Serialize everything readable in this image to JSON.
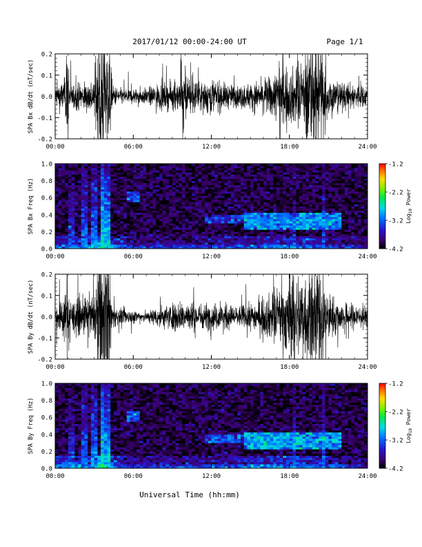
{
  "header": {
    "title": "2017/01/12  00:00-24:00 UT",
    "page": "Page 1/1"
  },
  "footer": {
    "xlabel": "Universal Time (hh:mm)"
  },
  "chart_data": [
    {
      "id": "bx-waveform",
      "type": "line",
      "ylabel": "SPA Bx dB/dt (nT/sec)",
      "ylim": [
        -0.2,
        0.2
      ],
      "yticks": [
        "0.2",
        "0.1",
        "0.0",
        "-0.1",
        "-0.2"
      ],
      "xticks": [
        "00:00",
        "06:00",
        "12:00",
        "18:00",
        "24:00"
      ],
      "xlim_hours": [
        0,
        24
      ],
      "series": [
        {
          "baseline_amplitude": [
            [
              0,
              0.04
            ],
            [
              0.8,
              0.07
            ],
            [
              1.2,
              0.05
            ],
            [
              2,
              0.05
            ],
            [
              3,
              0.07
            ],
            [
              3.4,
              0.25
            ],
            [
              4.1,
              0.25
            ],
            [
              4.4,
              0.04
            ],
            [
              5,
              0.03
            ],
            [
              7,
              0.03
            ],
            [
              8,
              0.05
            ],
            [
              9,
              0.05
            ],
            [
              9.6,
              0.06
            ],
            [
              10,
              0.09
            ],
            [
              11,
              0.05
            ],
            [
              12,
              0.07
            ],
            [
              13,
              0.05
            ],
            [
              14,
              0.04
            ],
            [
              15,
              0.05
            ],
            [
              16,
              0.06
            ],
            [
              17,
              0.09
            ],
            [
              18,
              0.1
            ],
            [
              19,
              0.12
            ],
            [
              20,
              0.13
            ],
            [
              21,
              0.08
            ],
            [
              22,
              0.05
            ],
            [
              23,
              0.05
            ],
            [
              24,
              0.04
            ]
          ],
          "bursts": [
            [
              0.8,
              1.1,
              0.22
            ],
            [
              3.4,
              4.1,
              0.25
            ],
            [
              9.6,
              10.0,
              0.22
            ],
            [
              17.2,
              17.6,
              0.2
            ],
            [
              19.2,
              20.8,
              0.22
            ]
          ]
        }
      ]
    },
    {
      "id": "bx-spectrogram",
      "type": "heatmap",
      "ylabel": "SPA Bx Freq (Hz)",
      "ylim": [
        0.0,
        1.0
      ],
      "yticks": [
        "1.0",
        "0.8",
        "0.6",
        "0.4",
        "0.2",
        "0.0"
      ],
      "xticks": [
        "00:00",
        "06:00",
        "12:00",
        "18:00",
        "24:00"
      ],
      "colorbar": {
        "label": "Log10 Power",
        "label_base": "Log",
        "label_sub": "10",
        "label_rest": " Power",
        "ticks": [
          "-1.2",
          "-2.2",
          "-3.2",
          "-4.2"
        ],
        "range": [
          -4.2,
          -1.2
        ]
      },
      "features": {
        "background": -4.0,
        "low_band": [
          [
            0,
            -3.1
          ],
          [
            3,
            -3.0
          ],
          [
            3.5,
            -2.4
          ],
          [
            4,
            -2.8
          ],
          [
            6,
            -3.4
          ],
          [
            12,
            -3.3
          ],
          [
            18,
            -3.0
          ],
          [
            21,
            -3.2
          ],
          [
            24,
            -3.6
          ]
        ],
        "vertical_lines": [
          [
            1.2,
            -3.3
          ],
          [
            2.2,
            -3.1
          ],
          [
            3.0,
            -3.0
          ],
          [
            3.6,
            -2.6
          ],
          [
            4.0,
            -2.8
          ],
          [
            18.4,
            -3.4
          ],
          [
            20.6,
            -3.2
          ]
        ],
        "band_0_3": [
          [
            14.5,
            22,
            -3.1
          ]
        ],
        "band_0_35": [
          [
            11.5,
            18,
            -3.4
          ]
        ],
        "patch_0_6": [
          [
            5.5,
            6.5,
            -3.3
          ]
        ]
      }
    },
    {
      "id": "by-waveform",
      "type": "line",
      "ylabel": "SPA By dB/dt (nT/sec)",
      "ylim": [
        -0.2,
        0.2
      ],
      "yticks": [
        "0.2",
        "0.1",
        "0.0",
        "-0.1",
        "-0.2"
      ],
      "xticks": [
        "00:00",
        "06:00",
        "12:00",
        "18:00",
        "24:00"
      ],
      "xlim_hours": [
        0,
        24
      ],
      "series": [
        {
          "baseline_amplitude": [
            [
              0,
              0.04
            ],
            [
              0.8,
              0.09
            ],
            [
              1.2,
              0.06
            ],
            [
              2,
              0.07
            ],
            [
              3,
              0.08
            ],
            [
              3.4,
              0.25
            ],
            [
              4.1,
              0.25
            ],
            [
              4.4,
              0.04
            ],
            [
              5,
              0.03
            ],
            [
              7,
              0.02
            ],
            [
              8,
              0.04
            ],
            [
              9,
              0.05
            ],
            [
              10,
              0.06
            ],
            [
              11,
              0.05
            ],
            [
              12,
              0.05
            ],
            [
              13,
              0.05
            ],
            [
              14,
              0.04
            ],
            [
              15,
              0.05
            ],
            [
              16,
              0.07
            ],
            [
              17,
              0.1
            ],
            [
              18,
              0.15
            ],
            [
              19,
              0.18
            ],
            [
              20,
              0.18
            ],
            [
              21,
              0.09
            ],
            [
              22,
              0.05
            ],
            [
              23,
              0.05
            ],
            [
              24,
              0.04
            ]
          ],
          "bursts": [
            [
              0.9,
              1.2,
              0.22
            ],
            [
              3.4,
              4.1,
              0.25
            ],
            [
              17.8,
              18.4,
              0.18
            ],
            [
              19.4,
              20.6,
              0.25
            ]
          ]
        }
      ]
    },
    {
      "id": "by-spectrogram",
      "type": "heatmap",
      "ylabel": "SPA By Freq (Hz)",
      "ylim": [
        0.0,
        1.0
      ],
      "yticks": [
        "1.0",
        "0.8",
        "0.6",
        "0.4",
        "0.2",
        "0.0"
      ],
      "xticks": [
        "00:00",
        "06:00",
        "12:00",
        "18:00",
        "24:00"
      ],
      "colorbar": {
        "label": "Log10 Power",
        "label_base": "Log",
        "label_sub": "10",
        "label_rest": " Power",
        "ticks": [
          "-1.2",
          "-2.2",
          "-3.2",
          "-4.2"
        ],
        "range": [
          -4.2,
          -1.2
        ]
      },
      "features": {
        "background": -4.0,
        "low_band": [
          [
            0,
            -3.0
          ],
          [
            3,
            -2.9
          ],
          [
            3.5,
            -2.3
          ],
          [
            4,
            -2.7
          ],
          [
            6,
            -3.3
          ],
          [
            12,
            -3.2
          ],
          [
            18,
            -2.9
          ],
          [
            21,
            -3.1
          ],
          [
            24,
            -3.5
          ]
        ],
        "vertical_lines": [
          [
            1.2,
            -3.3
          ],
          [
            2.2,
            -3.1
          ],
          [
            3.0,
            -3.0
          ],
          [
            3.6,
            -2.6
          ],
          [
            4.0,
            -2.8
          ],
          [
            18.4,
            -3.3
          ],
          [
            20.6,
            -3.1
          ]
        ],
        "band_0_3": [
          [
            14.5,
            22,
            -3.0
          ]
        ],
        "band_0_35": [
          [
            11.5,
            18,
            -3.3
          ]
        ],
        "patch_0_6": [
          [
            5.5,
            6.5,
            -3.3
          ]
        ]
      }
    }
  ]
}
